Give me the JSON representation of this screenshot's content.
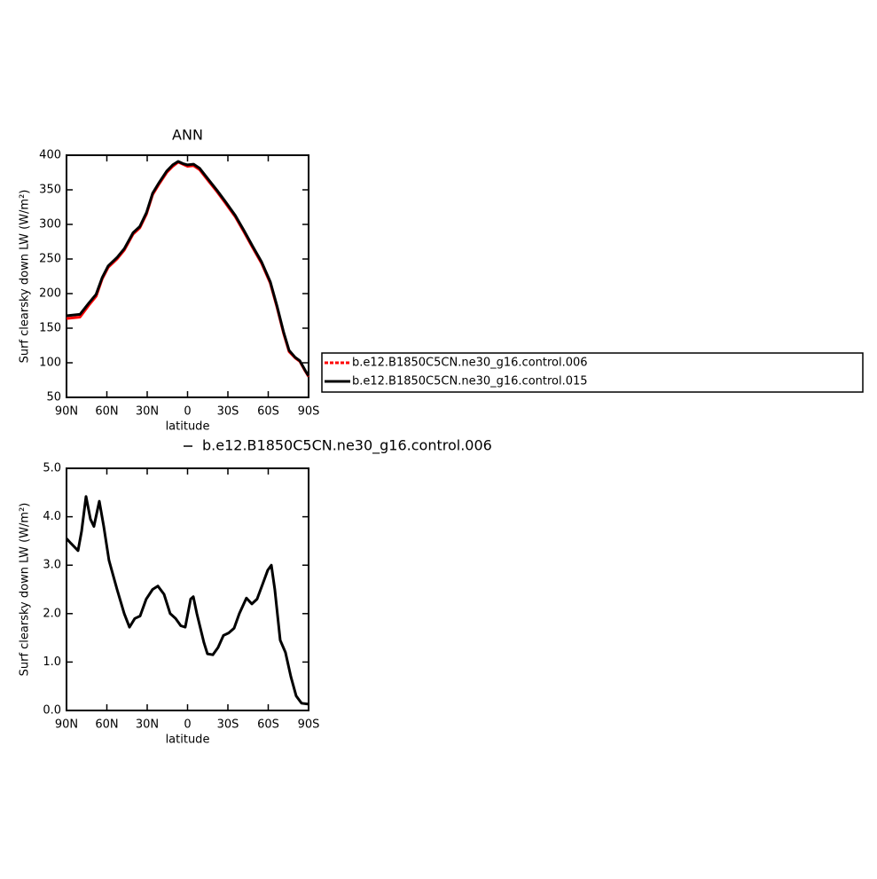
{
  "chart_data": [
    {
      "type": "line",
      "title": "ANN",
      "ylabel": "Surf clearsky down LW (W/m²)",
      "xlabel": "latitude",
      "xlim": [
        90,
        -90
      ],
      "xticks": [
        {
          "value": 90,
          "label": "90N"
        },
        {
          "value": 60,
          "label": "60N"
        },
        {
          "value": 30,
          "label": "30N"
        },
        0,
        {
          "value": -30,
          "label": "30S"
        },
        {
          "value": -60,
          "label": "60S"
        },
        {
          "value": -90,
          "label": "90S"
        }
      ],
      "ylim": [
        50,
        400
      ],
      "yticks": [
        50,
        100,
        150,
        200,
        250,
        300,
        350,
        400
      ],
      "x": [
        90,
        80,
        73.5,
        68,
        63.5,
        59,
        52.5,
        47,
        40.5,
        35.5,
        30.5,
        26,
        21,
        15.5,
        11,
        7,
        3.5,
        0,
        -4.5,
        -9,
        -15.5,
        -22,
        -28.5,
        -35.5,
        -42,
        -48.5,
        -55,
        -61.5,
        -66.5,
        -71.5,
        -75.5,
        -80,
        -83.5,
        -87.5,
        -90
      ],
      "series": [
        {
          "name": "b.e12.B1850C5CN.ne30_g16.control.006",
          "color": "#ff0000",
          "dash": "dashed",
          "values": [
            164,
            166,
            183,
            196,
            221,
            238,
            250,
            263,
            286,
            295,
            315,
            343,
            359,
            375,
            384,
            390,
            387,
            384,
            385,
            379,
            363,
            347,
            330,
            311,
            289,
            266,
            244,
            215,
            180,
            142,
            116,
            107,
            102,
            88,
            80
          ]
        },
        {
          "name": "b.e12.B1850C5CN.ne30_g16.control.015",
          "color": "#000000",
          "dash": "solid",
          "values": [
            168,
            170,
            186,
            199,
            223,
            240,
            252,
            265,
            288,
            297,
            317,
            345,
            361,
            377,
            386,
            391,
            388,
            386,
            387,
            381,
            365,
            349,
            332,
            313,
            291,
            268,
            246,
            217,
            182,
            144,
            118,
            108,
            103,
            89,
            81
          ]
        }
      ]
    },
    {
      "type": "line",
      "ylabel": "Surf clearsky down LW (W/m²)",
      "xlabel": "latitude",
      "xlim": [
        90,
        -90
      ],
      "xticks": [
        {
          "value": 90,
          "label": "90N"
        },
        {
          "value": 60,
          "label": "60N"
        },
        {
          "value": 30,
          "label": "30N"
        },
        0,
        {
          "value": -30,
          "label": "30S"
        },
        {
          "value": -60,
          "label": "60S"
        },
        {
          "value": -90,
          "label": "90S"
        }
      ],
      "ylim": [
        0,
        5
      ],
      "yticks": [
        {
          "value": 0,
          "label": "0.0"
        },
        {
          "value": 1,
          "label": "1.0"
        },
        {
          "value": 2,
          "label": "2.0"
        },
        {
          "value": 3,
          "label": "3.0"
        },
        {
          "value": 4,
          "label": "4.0"
        },
        {
          "value": 5,
          "label": "5.0"
        }
      ],
      "x": [
        90,
        86.7,
        81.4,
        78.8,
        75.5,
        72.2,
        69.6,
        65.6,
        62.3,
        58.4,
        52.4,
        47.1,
        43.2,
        39.2,
        35.3,
        30.7,
        26,
        22.1,
        17.5,
        12.9,
        8.9,
        5,
        1.7,
        -2.3,
        -4.3,
        -6.9,
        -12.2,
        -14.8,
        -18.8,
        -22.7,
        -26.7,
        -30.6,
        -34.6,
        -38.5,
        -43.8,
        -47.8,
        -51.7,
        -55.7,
        -59.7,
        -62.3,
        -64.9,
        -68.9,
        -72.8,
        -76.8,
        -80.8,
        -84.7,
        -90
      ],
      "series": [
        {
          "name": "b.e12.B1850C5CN.ne30_g16.control.006",
          "color": "#000000",
          "dash": "solid",
          "values": [
            3.55,
            3.45,
            3.3,
            3.7,
            4.42,
            3.95,
            3.8,
            4.32,
            3.8,
            3.1,
            2.5,
            2.0,
            1.72,
            1.9,
            1.95,
            2.3,
            2.5,
            2.57,
            2.4,
            2.0,
            1.9,
            1.75,
            1.72,
            2.3,
            2.35,
            2.0,
            1.4,
            1.17,
            1.15,
            1.3,
            1.55,
            1.6,
            1.7,
            2.0,
            2.32,
            2.2,
            2.3,
            2.6,
            2.9,
            3.0,
            2.5,
            1.45,
            1.2,
            0.7,
            0.3,
            0.15,
            0.13
          ]
        }
      ]
    }
  ]
}
